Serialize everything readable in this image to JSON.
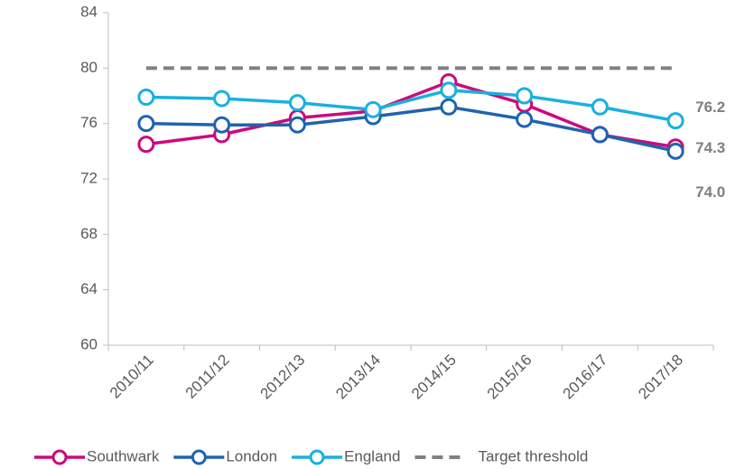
{
  "chart_data": {
    "type": "line",
    "categories": [
      "2010/11",
      "2011/12",
      "2012/13",
      "2013/14",
      "2014/15",
      "2015/16",
      "2016/17",
      "2017/18"
    ],
    "series": [
      {
        "name": "Southwark",
        "color": "#cc0a7a",
        "values": [
          74.5,
          75.2,
          76.4,
          76.9,
          79.0,
          77.4,
          75.2,
          74.3
        ],
        "value_labels": [
          null,
          null,
          null,
          null,
          null,
          null,
          null,
          "74.3"
        ]
      },
      {
        "name": "London",
        "color": "#1f63b0",
        "values": [
          76.0,
          75.9,
          75.9,
          76.5,
          77.2,
          76.3,
          75.2,
          74.0
        ],
        "value_labels": [
          null,
          null,
          null,
          null,
          null,
          null,
          null,
          "74.0"
        ]
      },
      {
        "name": "England",
        "color": "#1ab0e0",
        "values": [
          77.9,
          77.8,
          77.5,
          77.0,
          78.4,
          78.0,
          77.2,
          76.2
        ],
        "value_labels": [
          null,
          null,
          null,
          null,
          null,
          null,
          null,
          "76.2"
        ]
      },
      {
        "name": "Target threshold",
        "color": "#808080",
        "dashed": true,
        "values": [
          80,
          80,
          80,
          80,
          80,
          80,
          80,
          80
        ]
      }
    ],
    "ylim": [
      60,
      84
    ],
    "yticks": [
      60,
      64,
      68,
      72,
      76,
      80,
      84
    ],
    "grid": false,
    "legend": "bottom"
  }
}
